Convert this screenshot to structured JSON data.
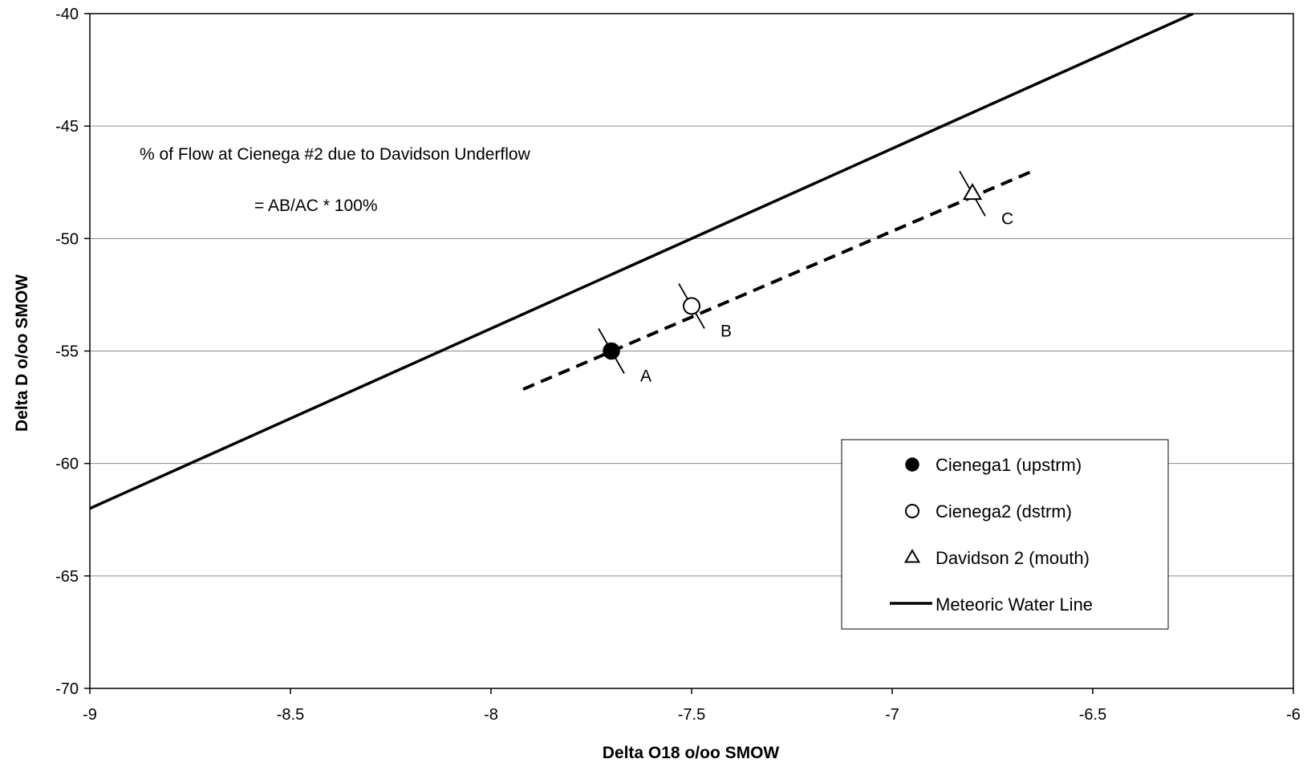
{
  "chart_data": {
    "type": "scatter",
    "title": "",
    "xlabel": "Delta O18 o/oo SMOW",
    "ylabel": "Delta D o/oo SMOW",
    "xlim": [
      -9,
      -6
    ],
    "ylim": [
      -70,
      -40
    ],
    "x_ticks": [
      -9,
      -8.5,
      -8,
      -7.5,
      -7,
      -6.5,
      -6
    ],
    "x_tick_labels": [
      "-9",
      "-8.5",
      "-8",
      "-7.5",
      "-7",
      "-6.5",
      "-6"
    ],
    "y_ticks": [
      -70,
      -65,
      -60,
      -55,
      -50,
      -45,
      -40
    ],
    "y_tick_labels": [
      "-70",
      "-65",
      "-60",
      "-55",
      "-50",
      "-45",
      "-40"
    ],
    "grid": "horizontal",
    "legend_position": "lower-right",
    "series": [
      {
        "name": "Cienega1 (upstrm)",
        "marker": "filled-circle",
        "points": [
          {
            "x": -7.7,
            "y": -55
          }
        ]
      },
      {
        "name": "Cienega2 (dstrm)",
        "marker": "open-circle",
        "points": [
          {
            "x": -7.5,
            "y": -53
          }
        ]
      },
      {
        "name": "Davidson 2 (mouth)",
        "marker": "open-triangle",
        "points": [
          {
            "x": -6.8,
            "y": -48
          }
        ]
      },
      {
        "name": "Meteoric Water Line",
        "style": "solid",
        "points": [
          {
            "x": -9,
            "y": -62
          },
          {
            "x": -6.25,
            "y": -40
          }
        ]
      }
    ],
    "mixing_line": {
      "style": "dashed",
      "points": [
        {
          "x": -7.92,
          "y": -56.7
        },
        {
          "x": -6.65,
          "y": -47.0
        }
      ]
    },
    "point_labels": [
      {
        "text": "A",
        "x": -7.7,
        "y": -55
      },
      {
        "text": "B",
        "x": -7.5,
        "y": -53
      },
      {
        "text": "C",
        "x": -6.8,
        "y": -48
      }
    ],
    "annotations": [
      "% of Flow at Cienega #2 due to Davidson Underflow",
      "= AB/AC * 100%"
    ]
  }
}
